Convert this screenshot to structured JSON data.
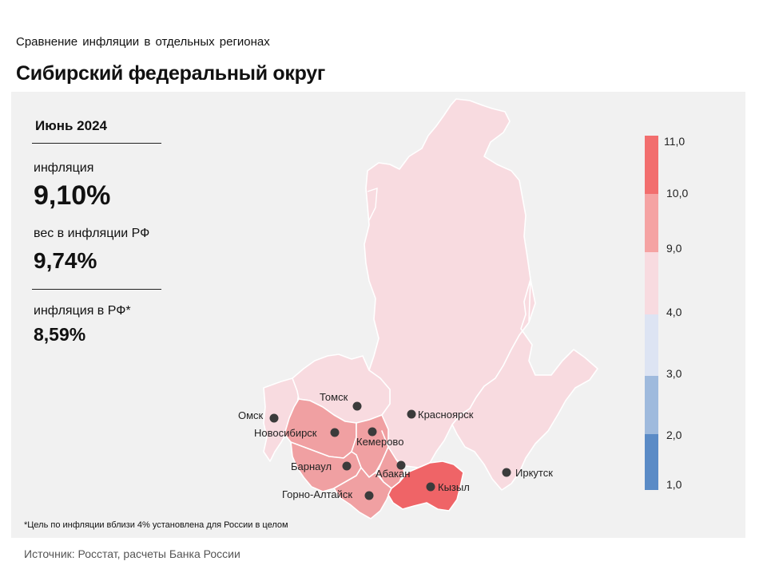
{
  "header": {
    "subtitle": "Сравнение инфляции в отдельных регионах",
    "title": "Сибирский федеральный округ"
  },
  "stats": {
    "period": "Июнь 2024",
    "inflation_label": "инфляция",
    "inflation_value": "9,10%",
    "weight_label": "вес в инфляции РФ",
    "weight_value": "9,74%",
    "rf_label": "инфляция в РФ*",
    "rf_value": "8,59%"
  },
  "legend": {
    "ticks": [
      "11,0",
      "10,0",
      "9,0",
      "4,0",
      "3,0",
      "2,0",
      "1,0"
    ],
    "bands": [
      {
        "from": 10.0,
        "to": 11.0,
        "color": "#f26e6e"
      },
      {
        "from": 9.0,
        "to": 10.0,
        "color": "#f5a3a3"
      },
      {
        "from": 4.0,
        "to": 9.0,
        "color": "#f8dbe0"
      },
      {
        "from": 3.0,
        "to": 4.0,
        "color": "#dde4f3"
      },
      {
        "from": 2.0,
        "to": 3.0,
        "color": "#9fbadd"
      },
      {
        "from": 1.0,
        "to": 2.0,
        "color": "#5b8bc6"
      }
    ]
  },
  "cities": {
    "tomsk": "Томск",
    "omsk": "Омск",
    "novosibirsk": "Новосибирск",
    "kemerovo": "Кемерово",
    "krasnoyarsk": "Красноярск",
    "barnaul": "Барнаул",
    "abakan": "Абакан",
    "kyzyl": "Кызыл",
    "gorno_altaysk": "Горно-Алтайск",
    "irkutsk": "Иркутск"
  },
  "colors": {
    "low": "#f8dbe0",
    "mid": "#f0a0a2",
    "high": "#ef6467",
    "panel": "#f1f1f1"
  },
  "footnote": "*Цель по инфляции вблизи 4% установлена для России в целом",
  "source": "Источник: Росстат, расчеты Банка России"
}
